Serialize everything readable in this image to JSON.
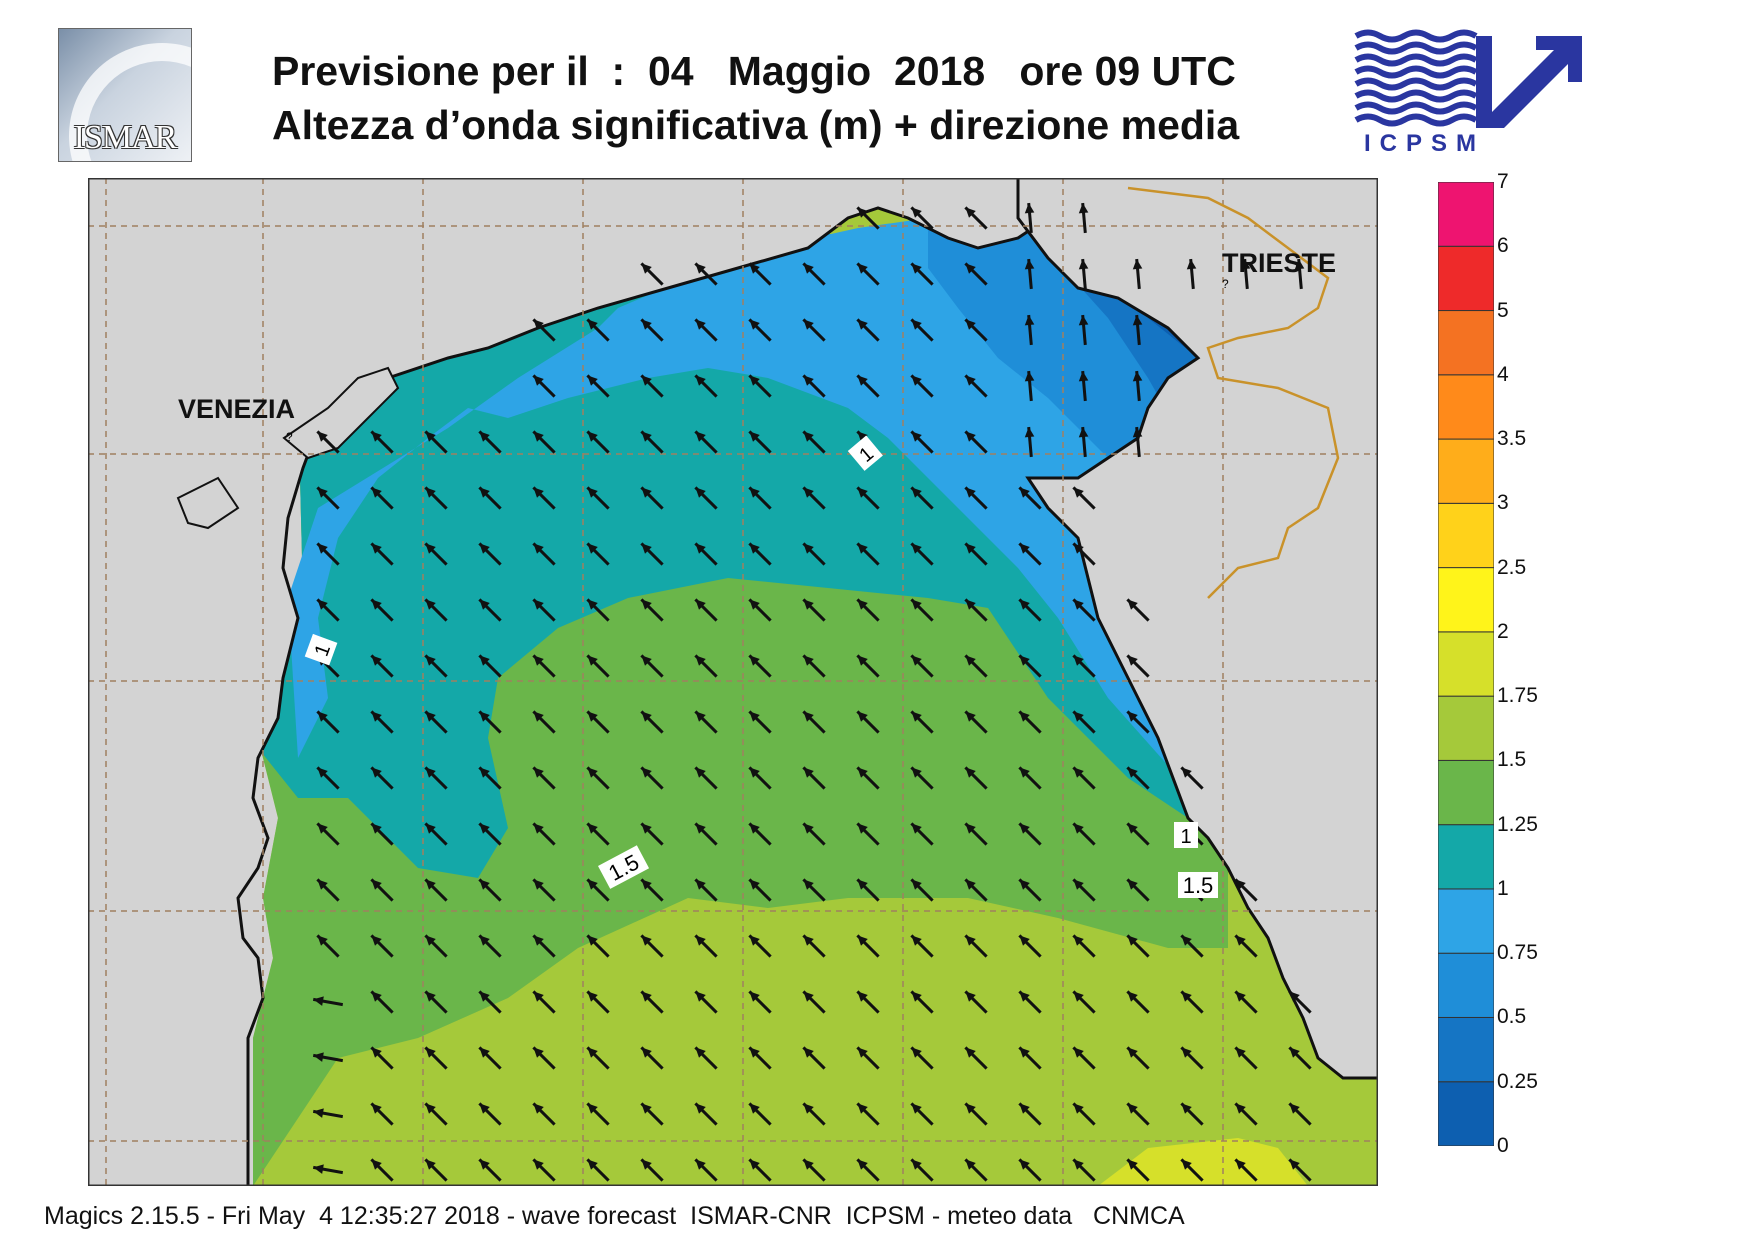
{
  "header": {
    "title_line1": "Previsione per il  :  04   Maggio  2018   ore 09 UTC",
    "title_line2": "Altezza d’onda significativa (m) + direzione media",
    "left_logo_text": "ISMAR",
    "right_logo_text": "ICPSM"
  },
  "map": {
    "labels": {
      "venezia": "VENEZIA",
      "trieste": "TRIESTE",
      "contour_1_top": "1",
      "contour_1_left": "1",
      "contour_1_right": "1",
      "contour_15_center": "1.5",
      "contour_15_right": "1.5",
      "marker_a": "?",
      "marker_b": "?"
    },
    "arrow_direction": "north-west"
  },
  "colorbar": {
    "levels": [
      "0",
      "0.25",
      "0.5",
      "0.75",
      "1",
      "1.25",
      "1.5",
      "1.75",
      "2",
      "2.5",
      "3",
      "3.5",
      "4",
      "5",
      "6",
      "7"
    ],
    "colors": [
      "#0d5fb0",
      "#1575c4",
      "#1f8ed8",
      "#2ea4e6",
      "#14a8a8",
      "#6ab64a",
      "#a5c93a",
      "#d6e02a",
      "#fff41a",
      "#ffd21a",
      "#ffad1a",
      "#ff8a1a",
      "#f47222",
      "#ee2a2a",
      "#ee1470"
    ]
  },
  "footer": {
    "text": "Magics 2.15.5 - Fri May  4 12:35:27 2018 - wave forecast  ISMAR-CNR  ICPSM - meteo data   CNMCA"
  }
}
